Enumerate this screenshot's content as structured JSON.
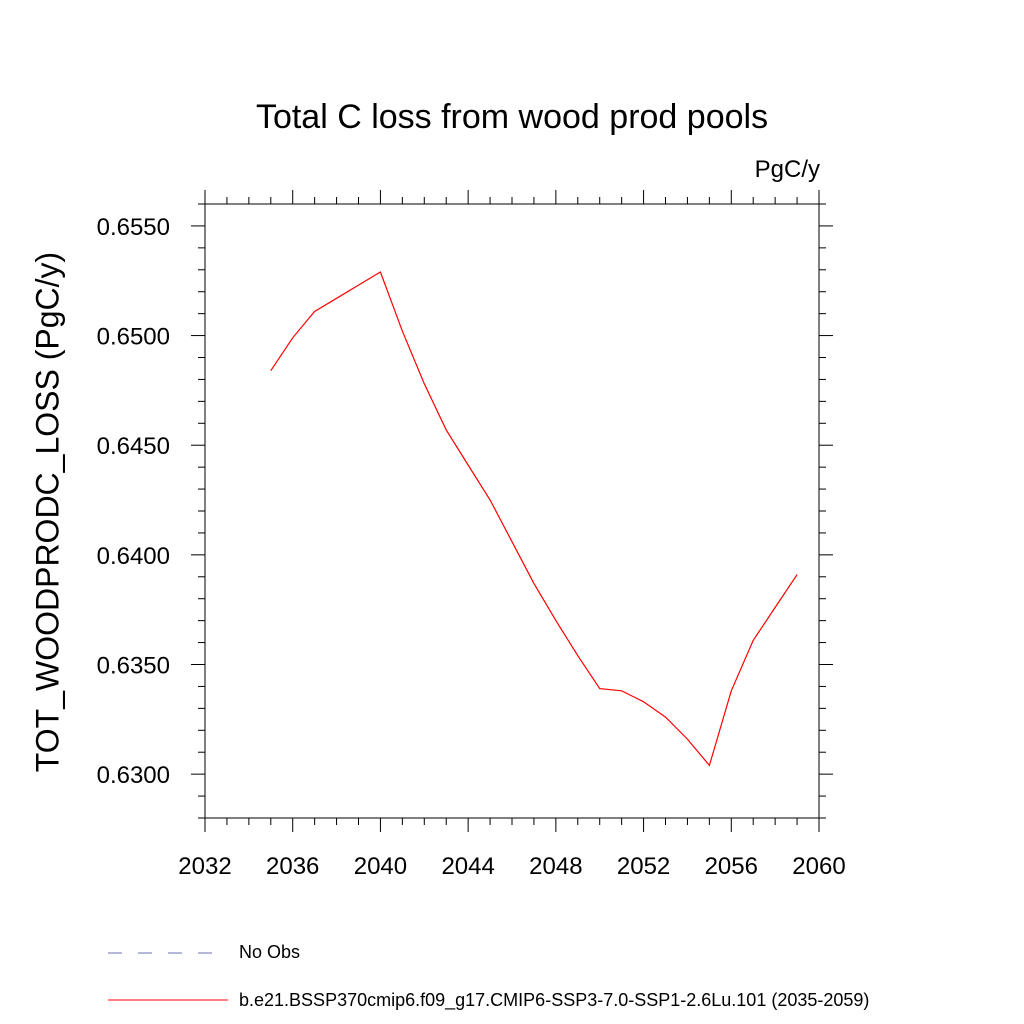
{
  "chart_data": {
    "type": "line",
    "title": "Total C loss from wood prod pools",
    "units_label": "PgC/y",
    "xlabel": "",
    "ylabel": "TOT_WOODPRODC_LOSS  (PgC/y)",
    "xlim": [
      2032,
      2060
    ],
    "ylim": [
      0.628,
      0.656
    ],
    "x_ticks": [
      2032,
      2036,
      2040,
      2044,
      2048,
      2052,
      2056,
      2060
    ],
    "y_ticks": [
      0.63,
      0.635,
      0.64,
      0.645,
      0.65,
      0.655
    ],
    "y_tick_labels": [
      "0.6300",
      "0.6350",
      "0.6400",
      "0.6450",
      "0.6500",
      "0.6550"
    ],
    "grid": false,
    "series": [
      {
        "name": "b.e21.BSSP370cmip6.f09_g17.CMIP6-SSP3-7.0-SSP1-2.6Lu.101 (2035-2059)",
        "color": "#ff0000",
        "x": [
          2035,
          2036,
          2037,
          2038,
          2039,
          2040,
          2041,
          2042,
          2043,
          2044,
          2045,
          2046,
          2047,
          2048,
          2049,
          2050,
          2051,
          2052,
          2053,
          2054,
          2055,
          2056,
          2057,
          2058,
          2059
        ],
        "y": [
          0.6484,
          0.6499,
          0.6511,
          0.6517,
          0.6523,
          0.6529,
          0.6502,
          0.6478,
          0.6457,
          0.6441,
          0.6425,
          0.6406,
          0.6387,
          0.637,
          0.6354,
          0.6339,
          0.6338,
          0.6333,
          0.6326,
          0.6316,
          0.6304,
          0.6338,
          0.6361,
          0.6376,
          0.6391
        ]
      }
    ],
    "legend": [
      {
        "label": "No Obs",
        "style": "dashed",
        "color": "#6f6fb0"
      },
      {
        "label": "b.e21.BSSP370cmip6.f09_g17.CMIP6-SSP3-7.0-SSP1-2.6Lu.101 (2035-2059)",
        "style": "solid",
        "color": "#ff0000"
      }
    ],
    "legend_position": "bottom-left"
  }
}
